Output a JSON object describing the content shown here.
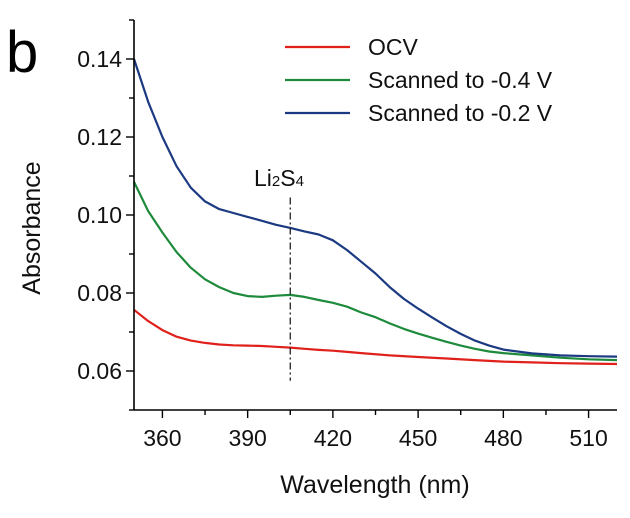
{
  "panel_label": "b",
  "chart_data": {
    "type": "line",
    "xlabel": "Wavelength (nm)",
    "ylabel": "Absorbance",
    "xlim": [
      350,
      520
    ],
    "ylim": [
      0.05,
      0.15
    ],
    "x_ticks": [
      360,
      390,
      420,
      450,
      480,
      510
    ],
    "y_ticks": [
      0.06,
      0.08,
      0.1,
      0.12,
      0.14
    ],
    "y_tick_labels": [
      "0.06",
      "0.08",
      "0.10",
      "0.12",
      "0.14"
    ],
    "legend_position": "top-right",
    "grid": false,
    "annotation": {
      "parts": [
        {
          "text": "Li",
          "sub": false
        },
        {
          "text": "2",
          "sub": true
        },
        {
          "text": "S",
          "sub": false
        },
        {
          "text": "4",
          "sub": true
        }
      ],
      "x": 405,
      "y_top": 0.1045,
      "y_bottom": 0.0575
    },
    "series": [
      {
        "name": "OCV",
        "color": "#e0201b",
        "x": [
          350,
          355,
          360,
          365,
          370,
          375,
          380,
          385,
          390,
          395,
          400,
          405,
          410,
          415,
          420,
          425,
          430,
          440,
          450,
          460,
          470,
          480,
          490,
          500,
          510,
          520
        ],
        "y": [
          0.0757,
          0.0728,
          0.0705,
          0.0688,
          0.0678,
          0.0672,
          0.0668,
          0.0666,
          0.0665,
          0.0664,
          0.0662,
          0.066,
          0.0657,
          0.0654,
          0.0652,
          0.0649,
          0.0646,
          0.064,
          0.0636,
          0.0632,
          0.0628,
          0.0624,
          0.0622,
          0.062,
          0.0619,
          0.0618
        ]
      },
      {
        "name": "Scanned to -0.4 V",
        "color": "#1e8a3c",
        "x": [
          350,
          355,
          360,
          365,
          370,
          375,
          380,
          385,
          390,
          395,
          400,
          405,
          410,
          415,
          420,
          425,
          430,
          435,
          440,
          445,
          450,
          455,
          460,
          465,
          470,
          475,
          480,
          490,
          500,
          510,
          520
        ],
        "y": [
          0.1085,
          0.101,
          0.0955,
          0.0905,
          0.0865,
          0.0835,
          0.0815,
          0.08,
          0.0792,
          0.079,
          0.0793,
          0.0795,
          0.079,
          0.0782,
          0.0775,
          0.0765,
          0.075,
          0.0738,
          0.0722,
          0.0708,
          0.0696,
          0.0685,
          0.0675,
          0.0665,
          0.0657,
          0.065,
          0.0646,
          0.064,
          0.0634,
          0.063,
          0.0628
        ]
      },
      {
        "name": "Scanned to -0.2 V",
        "color": "#1c3a82",
        "x": [
          350,
          355,
          360,
          365,
          370,
          375,
          380,
          385,
          390,
          395,
          400,
          405,
          410,
          415,
          420,
          425,
          430,
          435,
          440,
          445,
          450,
          455,
          460,
          465,
          470,
          475,
          480,
          490,
          500,
          510,
          520
        ],
        "y": [
          0.14,
          0.129,
          0.12,
          0.1125,
          0.107,
          0.1035,
          0.1015,
          0.1005,
          0.0995,
          0.0985,
          0.0975,
          0.0967,
          0.0958,
          0.095,
          0.0935,
          0.091,
          0.088,
          0.085,
          0.0815,
          0.0785,
          0.076,
          0.0737,
          0.0715,
          0.0695,
          0.0678,
          0.0665,
          0.0655,
          0.0645,
          0.064,
          0.0638,
          0.0637
        ]
      }
    ]
  }
}
